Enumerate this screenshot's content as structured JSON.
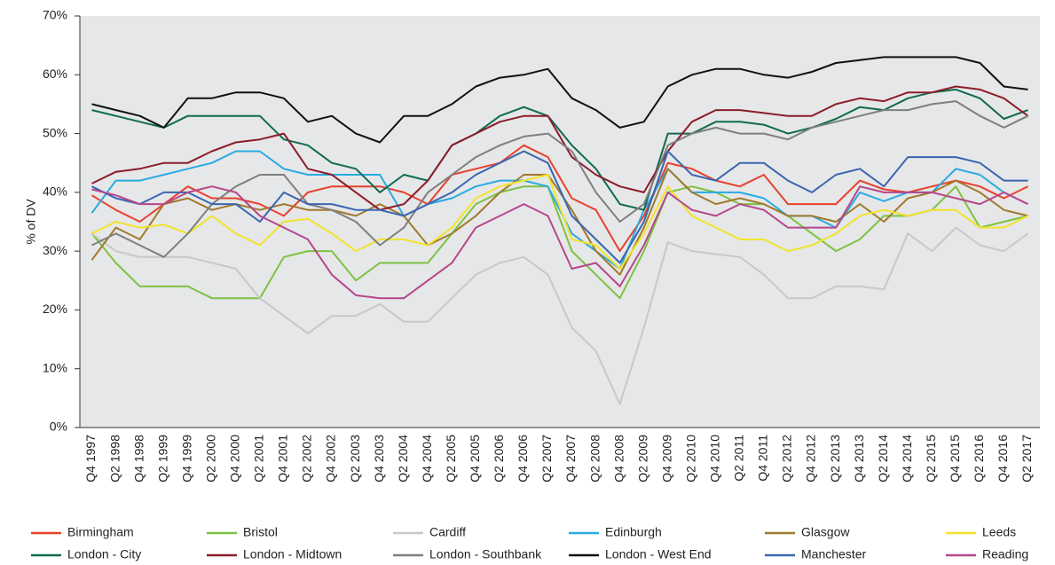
{
  "chart_data": {
    "type": "line",
    "y_label": "% of DV",
    "categories": [
      "Q4 1997",
      "Q2 1998",
      "Q4 1998",
      "Q2 1999",
      "Q4 1999",
      "Q2 2000",
      "Q4 2000",
      "Q2 2001",
      "Q4 2001",
      "Q2 2002",
      "Q4 2002",
      "Q2 2003",
      "Q4 2003",
      "Q2 2004",
      "Q4 2004",
      "Q2 2005",
      "Q4 2005",
      "Q2 2006",
      "Q4 2006",
      "Q2 2007",
      "Q4 2007",
      "Q2 2008",
      "Q4 2008",
      "Q2 2009",
      "Q4 2009",
      "Q2 2010",
      "Q4 2010",
      "Q2 2011",
      "Q4 2011",
      "Q2 2012",
      "Q4 2012",
      "Q2 2013",
      "Q4 2013",
      "Q2 2014",
      "Q4 2014",
      "Q2 2015",
      "Q4 2015",
      "Q2 2016",
      "Q4 2016",
      "Q2 2017"
    ],
    "ylim": [
      0,
      70
    ],
    "yticks": [
      {
        "value": 0,
        "label": "0%"
      },
      {
        "value": 10,
        "label": "10%"
      },
      {
        "value": 20,
        "label": "20%"
      },
      {
        "value": 30,
        "label": "30%"
      },
      {
        "value": 40,
        "label": "40%"
      },
      {
        "value": 50,
        "label": "50%"
      },
      {
        "value": 60,
        "label": "60%"
      },
      {
        "value": 70,
        "label": "70%"
      }
    ],
    "series": [
      {
        "name": "Birmingham",
        "color": "#e8412c",
        "values": [
          39.5,
          37,
          35,
          38,
          41,
          39,
          39,
          38,
          36,
          40,
          41,
          41,
          41,
          40,
          38,
          43,
          44,
          45,
          48,
          46,
          39,
          37,
          30,
          36,
          45,
          44,
          42,
          41,
          43,
          38,
          38,
          38,
          42,
          40.5,
          40,
          41,
          42,
          41,
          39,
          41
        ]
      },
      {
        "name": "Bristol",
        "color": "#7dc242",
        "values": [
          33,
          28,
          24,
          24,
          24,
          22,
          22,
          22,
          29,
          30,
          30,
          25,
          28,
          28,
          28,
          33,
          38,
          40,
          41,
          41,
          30,
          26,
          22,
          30,
          40,
          41,
          40,
          38,
          38,
          36,
          33,
          30,
          32,
          36,
          36,
          37,
          41,
          34,
          35,
          36
        ]
      },
      {
        "name": "Cardiff",
        "color": "#c8c8c8",
        "values": [
          33,
          30,
          29,
          29,
          29,
          28,
          27,
          22,
          19,
          16,
          19,
          19,
          21,
          18,
          18,
          22,
          26,
          28,
          29,
          26,
          17,
          13,
          4,
          17,
          31.5,
          30,
          29.5,
          29,
          26,
          22,
          22,
          24,
          24,
          23.5,
          33,
          30,
          34,
          31,
          30,
          33
        ]
      },
      {
        "name": "Edinburgh",
        "color": "#29abe2",
        "values": [
          36.5,
          42,
          42,
          43,
          44,
          45,
          47,
          47,
          44,
          43,
          43,
          43,
          43,
          36,
          38,
          39,
          41,
          42,
          42,
          41,
          33,
          30,
          27,
          37,
          44,
          40,
          40,
          40,
          39,
          36,
          36,
          34,
          40,
          38.5,
          40,
          40,
          44,
          43,
          40,
          38
        ]
      },
      {
        "name": "Glasgow",
        "color": "#a07a2c",
        "values": [
          28.5,
          34,
          32,
          38,
          39,
          37,
          38,
          37,
          38,
          37,
          37,
          36,
          38,
          36,
          31,
          33,
          36,
          40,
          43,
          43,
          37,
          30,
          26,
          34,
          44,
          40,
          38,
          39,
          38,
          36,
          36,
          35,
          38,
          35,
          39,
          40,
          42,
          40,
          37,
          36
        ]
      },
      {
        "name": "Leeds",
        "color": "#f2e32b",
        "values": [
          33,
          35,
          34,
          34.5,
          33,
          36,
          33,
          31,
          35,
          35.5,
          33,
          30,
          32,
          32,
          31,
          34,
          39,
          41,
          42,
          43,
          32,
          31,
          27,
          33,
          41,
          36,
          34,
          32,
          32,
          30,
          31,
          33,
          36,
          37,
          36,
          37,
          37,
          34,
          34,
          36
        ]
      },
      {
        "name": "London - City",
        "color": "#0f6b4e",
        "values": [
          54,
          53,
          52,
          51,
          53,
          53,
          53,
          53,
          49,
          48,
          45,
          44,
          40,
          43,
          42,
          48,
          50,
          53,
          54.5,
          53,
          48,
          44,
          38,
          37,
          50,
          50,
          52,
          52,
          51.5,
          50,
          51,
          52.5,
          54.5,
          54,
          56,
          57,
          57.5,
          56,
          52.5,
          54
        ]
      },
      {
        "name": "London - Midtown",
        "color": "#8c1c2a",
        "values": [
          41.5,
          43.5,
          44,
          45,
          45,
          47,
          48.5,
          49,
          50,
          44,
          43,
          40,
          37,
          38,
          42,
          48,
          50,
          52,
          53,
          53,
          46,
          43,
          41,
          40,
          47,
          52,
          54,
          54,
          53.5,
          53,
          53,
          55,
          56,
          55.5,
          57,
          57,
          58,
          57.5,
          56,
          53
        ]
      },
      {
        "name": "London - Southbank",
        "color": "#7f7f7f",
        "values": [
          31,
          33,
          31,
          29,
          33,
          38,
          41,
          43,
          43,
          38,
          37,
          35,
          31,
          34,
          40,
          43,
          46,
          48,
          49.5,
          50,
          47,
          40,
          35,
          38,
          48,
          50,
          51,
          50,
          50,
          49,
          51,
          52,
          53,
          54,
          54,
          55,
          55.5,
          53,
          51,
          53
        ]
      },
      {
        "name": "London - West End",
        "color": "#111111",
        "values": [
          55,
          54,
          53,
          51,
          56,
          56,
          57,
          57,
          56,
          52,
          53,
          50,
          48.5,
          53,
          53,
          55,
          58,
          59.5,
          60,
          61,
          56,
          54,
          51,
          52,
          58,
          60,
          61,
          61,
          60,
          59.5,
          60.5,
          62,
          62.5,
          63,
          63,
          63,
          63,
          62,
          58,
          57.5
        ]
      },
      {
        "name": "Manchester",
        "color": "#3a66b0",
        "values": [
          41,
          39,
          38,
          40,
          40,
          38,
          38,
          35,
          40,
          38,
          38,
          37,
          37,
          36,
          38,
          40,
          43,
          45,
          47,
          45,
          36,
          32,
          28,
          35,
          47,
          43,
          42,
          45,
          45,
          42,
          40,
          43,
          44,
          41,
          46,
          46,
          46,
          45,
          42,
          42
        ]
      },
      {
        "name": "Reading",
        "color": "#b5478b",
        "values": [
          40.5,
          39.5,
          38,
          38,
          40,
          41,
          40,
          36,
          34,
          32,
          26,
          22.5,
          22,
          22,
          25,
          28,
          34,
          36,
          38,
          36,
          27,
          28,
          24,
          31,
          40,
          37,
          36,
          38,
          37,
          34,
          34,
          34,
          41,
          40,
          40,
          40,
          39,
          38,
          40,
          38
        ]
      }
    ]
  }
}
